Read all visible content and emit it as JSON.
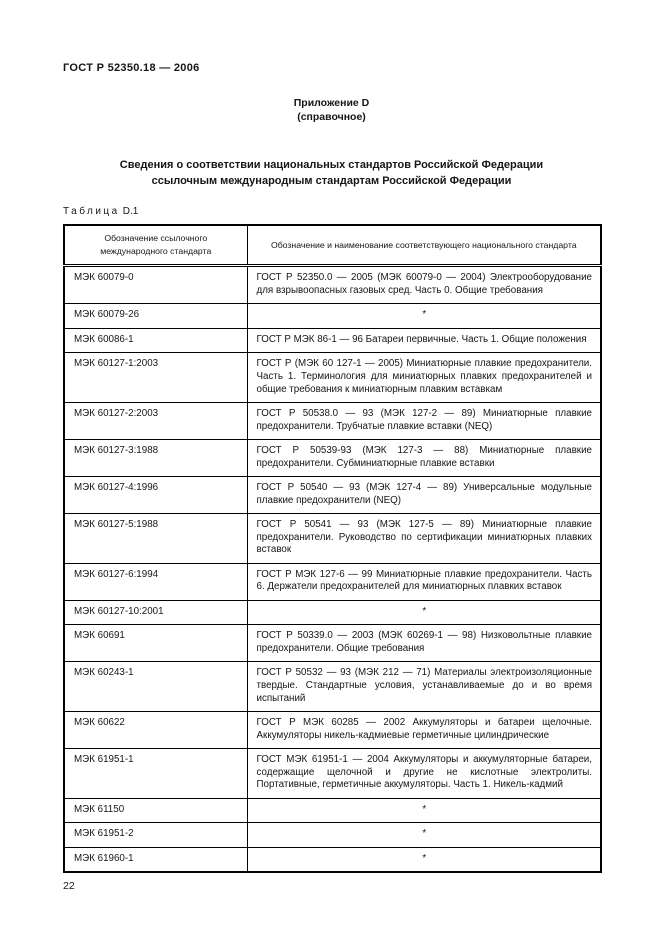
{
  "page": {
    "doc_number": "ГОСТ Р 52350.18 — 2006",
    "page_number": "22"
  },
  "annex": {
    "title": "Приложение D",
    "subtitle": "(справочное)"
  },
  "section_title": {
    "line1": "Сведения о соответствии национальных стандартов Российской Федерации",
    "line2": "ссылочным международным стандартам Российской Федерации"
  },
  "table": {
    "label_word": "Таблица",
    "label_number": "D.1",
    "columns": [
      "Обозначение ссылочного международного стандарта",
      "Обозначение и наименование соответствующего национального стандарта"
    ],
    "rows": [
      {
        "iec": "МЭК 60079-0",
        "national": "ГОСТ Р 52350.0 — 2005 (МЭК 60079-0 — 2004) Электрооборудование для взрывоопасных газовых сред. Часть 0. Общие требования"
      },
      {
        "iec": "МЭК 60079-26",
        "national": "*"
      },
      {
        "iec": "МЭК 60086-1",
        "national": "ГОСТ Р МЭК 86-1 — 96 Батареи первичные. Часть 1. Общие положения"
      },
      {
        "iec": "МЭК 60127-1:2003",
        "national": "ГОСТ Р (МЭК 60 127-1 — 2005) Миниатюрные плавкие предохранители. Часть 1. Терминология для миниатюрных плавких предохранителей и общие требования к миниатюрным плавким вставкам"
      },
      {
        "iec": "МЭК 60127-2:2003",
        "national": "ГОСТ Р 50538.0 — 93 (МЭК 127-2 — 89) Миниатюрные плавкие предохранители. Трубчатые плавкие вставки (NEQ)"
      },
      {
        "iec": "МЭК 60127-3:1988",
        "national": "ГОСТ Р 50539-93 (МЭК 127-3 — 88) Миниатюрные плавкие предохранители. Субминиатюрные плавкие вставки"
      },
      {
        "iec": "МЭК 60127-4:1996",
        "national": "ГОСТ Р 50540 — 93 (МЭК 127-4 — 89) Универсальные модульные плавкие предохранители (NEQ)"
      },
      {
        "iec": "МЭК 60127-5:1988",
        "national": "ГОСТ Р 50541 — 93 (МЭК 127-5 — 89) Миниатюрные плавкие предохранители. Руководство по сертификации миниатюрных плавких вставок"
      },
      {
        "iec": "МЭК 60127-6:1994",
        "national": "ГОСТ Р МЭК 127-6 — 99 Миниатюрные плавкие предохранители. Часть 6. Держатели предохранителей для миниатюрных плавких вставок"
      },
      {
        "iec": "МЭК 60127-10:2001",
        "national": "*"
      },
      {
        "iec": "МЭК 60691",
        "national": "ГОСТ Р 50339.0 — 2003 (МЭК 60269-1 — 98) Низковольтные плавкие предохранители. Общие требования"
      },
      {
        "iec": "МЭК 60243-1",
        "national": "ГОСТ Р 50532 — 93 (МЭК 212 — 71) Материалы электроизоляционные твердые. Стандартные условия, устанавливаемые до и во время испытаний"
      },
      {
        "iec": "МЭК 60622",
        "national": "ГОСТ Р МЭК 60285 — 2002 Аккумуляторы и батареи щелочные. Аккумуляторы никель-кадмиевые герметичные цилиндрические"
      },
      {
        "iec": "МЭК 61951-1",
        "national": "ГОСТ МЭК 61951-1 — 2004 Аккумуляторы и аккумуляторные батареи, содержащие щелочной и другие не кислотные электролиты. Портативные, герметичные аккумуляторы. Часть 1. Никель-кадмий"
      },
      {
        "iec": "МЭК 61150",
        "national": "*"
      },
      {
        "iec": "МЭК 61951-2",
        "national": "*"
      },
      {
        "iec": "МЭК 61960-1",
        "national": "*"
      }
    ]
  }
}
